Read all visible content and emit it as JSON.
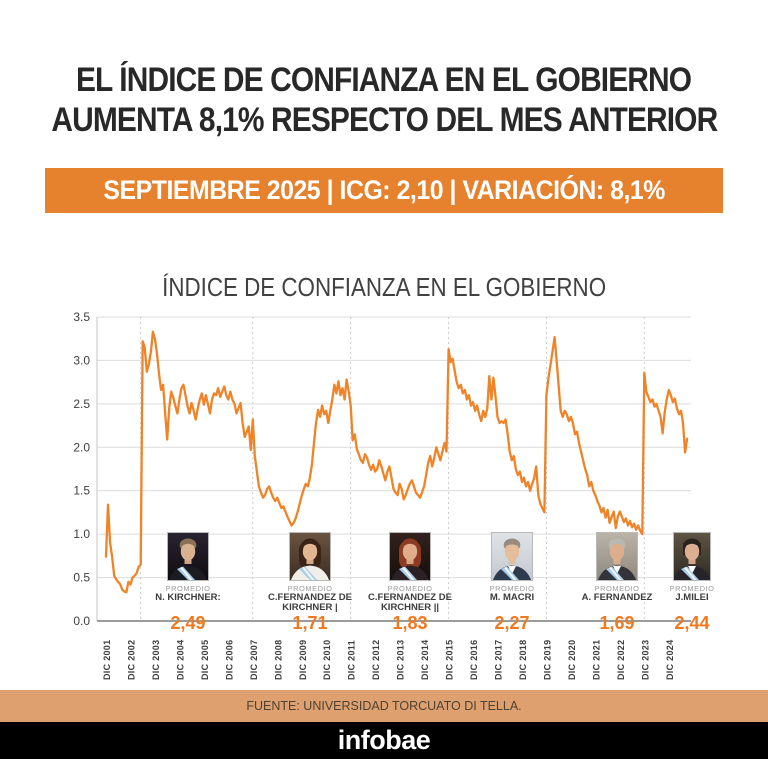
{
  "header": {
    "title_line1": "EL ÍNDICE DE CONFIANZA EN EL GOBIERNO",
    "title_line2": "AUMENTA 8,1% RESPECTO DEL MES ANTERIOR",
    "banner": "SEPTIEMBRE 2025 | ICG: 2,10 | VARIACIÓN: 8,1%"
  },
  "colors": {
    "banner_bg": "#E6812E",
    "line_orange": "#F08327",
    "value_orange": "#F0791F",
    "grid": "#DCDCDC",
    "grid_dashed": "#CBCBCB",
    "axis_bottom": "#9B9B9B",
    "axis_left": "#C4C4C4",
    "tick_text": "#3E3E3E",
    "source_band_bg": "#DDA06E",
    "logo_band_bg": "#000000"
  },
  "chart_data": {
    "type": "line",
    "title": "ÍNDICE DE CONFIANZA EN EL GOBIERNO",
    "series_name": "ICG",
    "frequency": "monthly",
    "x_start": "DIC 2001",
    "x_end": "SEP 2025",
    "ylim": [
      0,
      3.5
    ],
    "y_ticks": [
      "3.5",
      "3.0",
      "2.5",
      "2.0",
      "1.5",
      "1.0",
      "0.5",
      "0.0"
    ],
    "x_tick_labels": [
      "DIC 2001",
      "DIC 2002",
      "DIC 2003",
      "DIC 2004",
      "DIC 2005",
      "DIC 2006",
      "DIC 2007",
      "DIC 2008",
      "DIC 2009",
      "DIC 2010",
      "DIC 2011",
      "DIC 2012",
      "DIC 2013",
      "DIC 2014",
      "DIC 2015",
      "DIC 2016",
      "DIC 2017",
      "DIC 2018",
      "DIC 2019",
      "DIC 2020",
      "DIC 2021",
      "DIC 2022",
      "DIC 2023",
      "DIC 2024"
    ],
    "grid": "horizontal solid every 0.5; vertical dashed at presidential inaugurations",
    "legend_position": "none",
    "inauguration_month_indices": [
      17,
      72,
      120,
      168,
      216,
      264
    ],
    "latest_value": "2,10",
    "latest_variation": "8,1%",
    "values": [
      0.74,
      1.34,
      0.9,
      0.74,
      0.52,
      0.48,
      0.45,
      0.42,
      0.36,
      0.34,
      0.33,
      0.45,
      0.42,
      0.5,
      0.52,
      0.55,
      0.62,
      0.65,
      3.22,
      3.15,
      2.87,
      2.95,
      3.1,
      3.33,
      3.25,
      3.08,
      2.85,
      2.66,
      2.72,
      2.4,
      2.09,
      2.45,
      2.64,
      2.57,
      2.48,
      2.39,
      2.55,
      2.68,
      2.72,
      2.6,
      2.47,
      2.39,
      2.51,
      2.42,
      2.32,
      2.45,
      2.55,
      2.62,
      2.49,
      2.6,
      2.5,
      2.39,
      2.55,
      2.62,
      2.6,
      2.68,
      2.58,
      2.64,
      2.7,
      2.6,
      2.55,
      2.64,
      2.55,
      2.5,
      2.39,
      2.45,
      2.51,
      2.28,
      2.12,
      2.18,
      2.24,
      1.97,
      2.32,
      1.9,
      1.72,
      1.55,
      1.48,
      1.42,
      1.45,
      1.52,
      1.55,
      1.48,
      1.42,
      1.38,
      1.42,
      1.36,
      1.3,
      1.32,
      1.26,
      1.2,
      1.15,
      1.1,
      1.13,
      1.18,
      1.26,
      1.35,
      1.44,
      1.52,
      1.58,
      1.55,
      1.65,
      1.8,
      2.05,
      2.28,
      2.43,
      2.35,
      2.48,
      2.38,
      2.42,
      2.28,
      2.42,
      2.55,
      2.72,
      2.62,
      2.76,
      2.6,
      2.68,
      2.55,
      2.78,
      2.65,
      2.48,
      2.08,
      2.15,
      1.98,
      1.92,
      1.85,
      1.82,
      1.92,
      1.88,
      1.8,
      1.74,
      1.8,
      1.72,
      1.75,
      1.85,
      1.78,
      1.7,
      1.62,
      1.72,
      1.78,
      1.65,
      1.52,
      1.48,
      1.45,
      1.58,
      1.52,
      1.4,
      1.45,
      1.52,
      1.58,
      1.62,
      1.55,
      1.48,
      1.45,
      1.42,
      1.48,
      1.55,
      1.68,
      1.82,
      1.9,
      1.78,
      1.88,
      2.0,
      1.92,
      1.85,
      1.95,
      2.05,
      1.95,
      3.13,
      2.98,
      3.02,
      2.88,
      2.75,
      2.68,
      2.72,
      2.62,
      2.66,
      2.55,
      2.6,
      2.48,
      2.52,
      2.42,
      2.48,
      2.38,
      2.3,
      2.42,
      2.35,
      2.45,
      2.82,
      2.55,
      2.8,
      2.6,
      2.35,
      2.28,
      2.3,
      2.28,
      2.32,
      2.15,
      1.95,
      1.85,
      1.9,
      1.75,
      1.68,
      1.72,
      1.6,
      1.65,
      1.55,
      1.6,
      1.5,
      1.58,
      1.65,
      1.78,
      1.45,
      1.35,
      1.3,
      1.25,
      2.6,
      2.8,
      2.95,
      3.1,
      3.27,
      3.0,
      2.7,
      2.42,
      2.35,
      2.42,
      2.38,
      2.3,
      2.35,
      2.28,
      2.15,
      2.18,
      2.05,
      1.95,
      1.85,
      1.75,
      1.68,
      1.55,
      1.6,
      1.5,
      1.45,
      1.38,
      1.33,
      1.25,
      1.3,
      1.19,
      1.28,
      1.13,
      1.2,
      1.26,
      1.07,
      1.2,
      1.26,
      1.2,
      1.14,
      1.18,
      1.1,
      1.15,
      1.08,
      1.12,
      1.05,
      1.1,
      1.04,
      1.0,
      2.86,
      2.64,
      2.58,
      2.52,
      2.55,
      2.47,
      2.5,
      2.42,
      2.35,
      2.16,
      2.4,
      2.55,
      2.66,
      2.6,
      2.52,
      2.56,
      2.45,
      2.38,
      2.42,
      2.28,
      1.94,
      2.1
    ],
    "promedio_label": "PROMEDIO",
    "presidents": [
      {
        "name": "N. KIRCHNER:",
        "value": "2,49",
        "photo": {
          "bg1": "#2a2430",
          "bg2": "#0e0c10",
          "hair": "#8a7256",
          "skin": "#d9b291",
          "suit": "#1b1c22",
          "shirt": "",
          "sash": true,
          "long_hair": false
        }
      },
      {
        "name": "C.FERNÁNDEZ DE KIRCHNER |",
        "value": "1,71",
        "photo": {
          "bg1": "#6b5340",
          "bg2": "#3c2e24",
          "hair": "#3a2418",
          "skin": "#e2b593",
          "suit": "#f1ede7",
          "shirt": "",
          "sash": true,
          "long_hair": true
        }
      },
      {
        "name": "C.FERNÁNDEZ DE KIRCHNER ||",
        "value": "1,83",
        "photo": {
          "bg1": "#33211c",
          "bg2": "#150f0d",
          "hair": "#8c3b22",
          "skin": "#e0ac8a",
          "suit": "#2b2024",
          "shirt": "",
          "sash": true,
          "long_hair": true
        }
      },
      {
        "name": "M. MACRI",
        "value": "2,27",
        "photo": {
          "bg1": "#dfe3e6",
          "bg2": "#c2c9cf",
          "hair": "#9a8d80",
          "skin": "#e5bd9b",
          "suit": "#2e3a4d",
          "shirt": "#ffffff",
          "sash": true,
          "long_hair": false
        }
      },
      {
        "name": "A. FERNÁNDEZ",
        "value": "1,69",
        "photo": {
          "bg1": "#b9b3a8",
          "bg2": "#8f897e",
          "hair": "#b9b9b4",
          "skin": "#dcae8d",
          "suit": "#33343a",
          "shirt": "#ffffff",
          "sash": true,
          "long_hair": false
        }
      },
      {
        "name": "J.MILEI",
        "value": "2,44",
        "photo": {
          "bg1": "#5f5444",
          "bg2": "#2e2a22",
          "hair": "#2a2420",
          "skin": "#dcaf92",
          "suit": "#26242a",
          "shirt": "#ffffff",
          "sash": true,
          "long_hair": false
        }
      }
    ]
  },
  "footer": {
    "source": "FUENTE: UNIVERSIDAD TORCUATO DI TELLA.",
    "logo": "infobae"
  }
}
